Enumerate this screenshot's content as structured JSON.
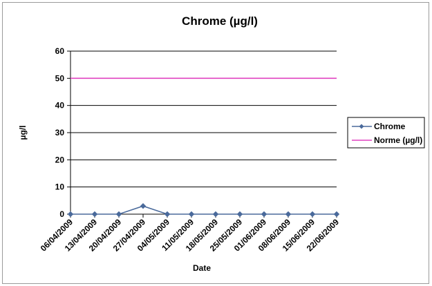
{
  "chart_data": {
    "type": "line",
    "title": "Chrome (µg/l)",
    "xlabel": "Date",
    "ylabel": "µg/l",
    "ylim": [
      0,
      60
    ],
    "yticks": [
      0,
      10,
      20,
      30,
      40,
      50,
      60
    ],
    "grid": true,
    "legend_position": "right",
    "categories": [
      "06/04/2009",
      "13/04/2009",
      "20/04/2009",
      "27/04/2009",
      "04/05/2009",
      "11/05/2009",
      "18/05/2009",
      "25/05/2009",
      "01/06/2009",
      "08/06/2009",
      "15/06/2009",
      "22/06/2009"
    ],
    "series": [
      {
        "name": "Chrome",
        "values": [
          0,
          0,
          0,
          3,
          0,
          0,
          0,
          0,
          0,
          0,
          0,
          0
        ],
        "color": "#4a6a9b",
        "marker": "diamond"
      },
      {
        "name": "Norme (µg/l)",
        "values": [
          50,
          50,
          50,
          50,
          50,
          50,
          50,
          50,
          50,
          50,
          50,
          50
        ],
        "color": "#e040c0",
        "marker": "none"
      }
    ]
  }
}
